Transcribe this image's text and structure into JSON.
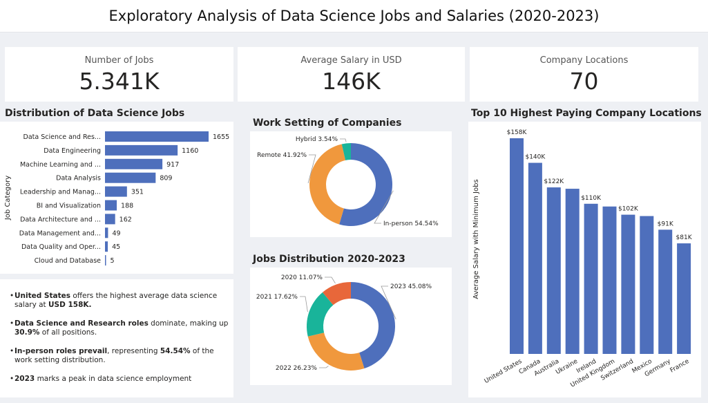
{
  "title": "Exploratory Analysis of Data Science Jobs and Salaries (2020-2023)",
  "kpis": [
    {
      "label": "Number of Jobs",
      "value": "5.341K"
    },
    {
      "label": "Average Salary in USD",
      "value": "146K"
    },
    {
      "label": "Company Locations",
      "value": "70"
    }
  ],
  "insights": [
    {
      "parts": [
        {
          "text": "United States",
          "bold": true
        },
        {
          "text": " offers the highest average data science salary at ",
          "bold": false
        },
        {
          "text": "USD 158K.",
          "bold": true
        }
      ]
    },
    {
      "parts": [
        {
          "text": "Data Science and Research roles",
          "bold": true
        },
        {
          "text": " dominate, making up ",
          "bold": false
        },
        {
          "text": "30.9%",
          "bold": true
        },
        {
          "text": " of all positions.",
          "bold": false
        }
      ]
    },
    {
      "parts": [
        {
          "text": "In-person roles prevail",
          "bold": true
        },
        {
          "text": ", representing ",
          "bold": false
        },
        {
          "text": "54.54%",
          "bold": true
        },
        {
          "text": " of the work setting distribution.",
          "bold": false
        }
      ]
    },
    {
      "parts": [
        {
          "text": "2023",
          "bold": true
        },
        {
          "text": " marks a peak in data science employment",
          "bold": false
        }
      ]
    }
  ],
  "colors": {
    "bar": "#4e6fbc",
    "in_person": "#4e6fbc",
    "remote": "#f0983d",
    "hybrid": "#19b49a",
    "y2020": "#e8673a",
    "y2021": "#19b49a",
    "y2022": "#f0983d",
    "y2023": "#4e6fbc"
  },
  "chart_data": [
    {
      "type": "bar",
      "orientation": "horizontal",
      "title": "Distribution of Data Science Jobs",
      "ylabel": "Job Category",
      "categories": [
        "Data Science and Res...",
        "Data Engineering",
        "Machine Learning and ...",
        "Data Analysis",
        "Leadership and Manag...",
        "BI and Visualization",
        "Data Architecture and ...",
        "Data Management and...",
        "Data Quality and Oper...",
        "Cloud and Database"
      ],
      "values": [
        1655,
        1160,
        917,
        809,
        351,
        188,
        162,
        49,
        45,
        5
      ],
      "data_labels": [
        "1655",
        "1160",
        "917",
        "809",
        "351",
        "188",
        "162",
        "49",
        "45",
        "5"
      ]
    },
    {
      "type": "pie",
      "donut": true,
      "title": "Work Setting of Companies",
      "slices": [
        {
          "name": "In-person",
          "value": 54.54,
          "label": "In-person 54.54%"
        },
        {
          "name": "Remote",
          "value": 41.92,
          "label": "Remote 41.92%"
        },
        {
          "name": "Hybrid",
          "value": 3.54,
          "label": "Hybrid 3.54%"
        }
      ]
    },
    {
      "type": "pie",
      "donut": true,
      "title": "Jobs Distribution 2020-2023",
      "slices": [
        {
          "name": "2023",
          "value": 45.08,
          "label": "2023 45.08%"
        },
        {
          "name": "2022",
          "value": 26.23,
          "label": "2022 26.23%"
        },
        {
          "name": "2021",
          "value": 17.62,
          "label": "2021 17.62%"
        },
        {
          "name": "2020",
          "value": 11.07,
          "label": "2020 11.07%"
        }
      ]
    },
    {
      "type": "bar",
      "orientation": "vertical",
      "title": "Top 10 Highest Paying Company Locations",
      "ylabel": "Average Salary with Minimum Jobs",
      "categories": [
        "United States",
        "Canada",
        "Australia",
        "Ukraine",
        "Ireland",
        "United Kingdom",
        "Switzerland",
        "Mexico",
        "Germany",
        "France"
      ],
      "values": [
        158,
        140,
        122,
        121,
        110,
        108,
        102,
        101,
        91,
        81
      ],
      "data_labels": [
        "$158K",
        "$140K",
        "$122K",
        "",
        "$110K",
        "",
        "$102K",
        "",
        "$91K",
        "$81K"
      ],
      "ylim": [
        0,
        170
      ]
    }
  ]
}
